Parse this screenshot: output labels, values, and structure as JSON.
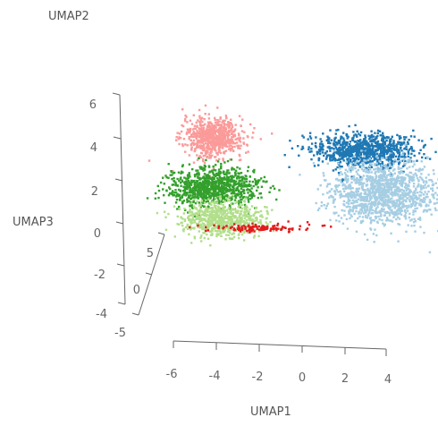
{
  "chart_data": {
    "type": "scatter",
    "title": "",
    "projection": "3d",
    "axes": {
      "x": {
        "label": "UMAP1",
        "range": [
          -6,
          4
        ],
        "ticks": [
          -6,
          -4,
          -2,
          0,
          2,
          4
        ]
      },
      "y": {
        "label": "UMAP2",
        "range": [
          -5,
          5
        ],
        "ticks": [
          -5,
          0,
          5
        ]
      },
      "z": {
        "label": "UMAP3",
        "range": [
          -4,
          6
        ],
        "ticks": [
          -4,
          -2,
          0,
          2,
          4,
          6
        ]
      }
    },
    "legend": "none",
    "grid": false,
    "clusters": [
      {
        "color": "#fb9a99",
        "center": [
          -4.3,
          3.8
        ],
        "spread": [
          1.2,
          1.0
        ],
        "count": 700
      },
      {
        "color": "#33a02c",
        "center": [
          -4.3,
          1.2
        ],
        "spread": [
          1.8,
          1.0
        ],
        "count": 900
      },
      {
        "color": "#b2df8a",
        "center": [
          -4.0,
          -0.5
        ],
        "spread": [
          1.6,
          0.9
        ],
        "count": 700
      },
      {
        "color": "#1f78b4",
        "center": [
          1.7,
          3.1
        ],
        "spread": [
          2.0,
          0.9
        ],
        "count": 900
      },
      {
        "color": "#a6cee3",
        "center": [
          2.5,
          0.9
        ],
        "spread": [
          2.1,
          1.6
        ],
        "count": 1300
      },
      {
        "color": "#e31a1c",
        "center": [
          -2.5,
          -0.9
        ],
        "spread": [
          2.0,
          0.2
        ],
        "count": 120
      }
    ]
  }
}
